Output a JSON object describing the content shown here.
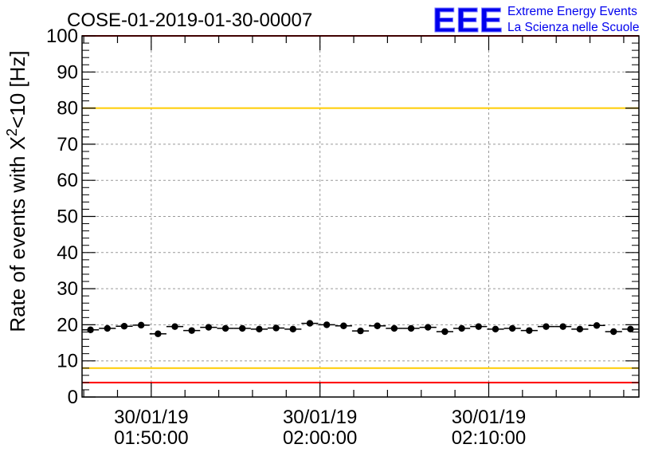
{
  "chart_data": {
    "type": "scatter",
    "title": "COSE-01-2019-01-30-00007",
    "ylabel_main": "Rate of events with X",
    "ylabel_sup": "2",
    "ylabel_tail": "<10 [Hz]",
    "xlabel": "",
    "ylim": [
      0,
      100
    ],
    "y_major_ticks": [
      0,
      10,
      20,
      30,
      40,
      50,
      60,
      70,
      80,
      90,
      100
    ],
    "y_tick_labels": [
      "0",
      "10",
      "20",
      "30",
      "40",
      "50",
      "60",
      "70",
      "80",
      "90",
      "100"
    ],
    "xlim_minutes": [
      -4.1,
      28.9
    ],
    "x_major_ticks": [
      {
        "minute": 0,
        "date": "30/01/19",
        "time": "01:50:00"
      },
      {
        "minute": 10,
        "date": "30/01/19",
        "time": "02:00:00"
      },
      {
        "minute": 20,
        "date": "30/01/19",
        "time": "02:10:00"
      }
    ],
    "x_minor_step": 2,
    "grid": true,
    "reference_lines": [
      {
        "name": "upper-red",
        "y": 100,
        "color": "#ff0000"
      },
      {
        "name": "upper-yellow",
        "y": 80,
        "color": "#ffcc00"
      },
      {
        "name": "lower-yellow",
        "y": 8,
        "color": "#ffcc00"
      },
      {
        "name": "lower-red",
        "y": 4,
        "color": "#ff0000"
      }
    ],
    "series": [
      {
        "name": "rate",
        "color": "#000000",
        "bin_width_minutes": 1,
        "x_minutes": [
          -3.6,
          -2.6,
          -1.6,
          -0.6,
          0.4,
          1.4,
          2.4,
          3.4,
          4.4,
          5.4,
          6.4,
          7.4,
          8.4,
          9.4,
          10.4,
          11.4,
          12.4,
          13.4,
          14.4,
          15.4,
          16.4,
          17.4,
          18.4,
          19.4,
          20.4,
          21.4,
          22.4,
          23.4,
          24.4,
          25.4,
          26.4,
          27.4,
          28.4
        ],
        "values": [
          18.6,
          19.0,
          19.6,
          19.9,
          17.5,
          19.5,
          18.4,
          19.3,
          19.0,
          19.0,
          18.8,
          19.1,
          18.8,
          20.4,
          20.0,
          19.7,
          18.3,
          19.7,
          19.0,
          19.0,
          19.3,
          18.1,
          19.0,
          19.5,
          18.8,
          19.0,
          18.4,
          19.5,
          19.5,
          18.8,
          19.8,
          18.1,
          18.8
        ]
      }
    ]
  },
  "logo": {
    "mark": "EEE",
    "line1": "Extreme Energy Events",
    "line2": "La Scienza nelle Scuole",
    "color": "#0000ee"
  }
}
